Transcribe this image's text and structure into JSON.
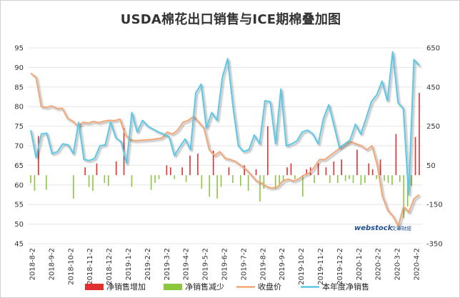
{
  "chart_data": {
    "type": "bar",
    "title": "USDA棉花出口销售与ICE期棉叠加图",
    "left_axis": {
      "min": 45,
      "max": 95,
      "ticks": [
        95,
        90,
        85,
        80,
        75,
        70,
        65,
        60,
        55,
        50,
        45
      ]
    },
    "right_axis": {
      "min": -350,
      "max": 650,
      "ticks": [
        650,
        450,
        250,
        50,
        -150,
        -350
      ]
    },
    "x_tick_labels": [
      "2018-8-2",
      "2018-9-2",
      "2018-10-2",
      "2018-11-2",
      "2018-12-2",
      "2019-1-2",
      "2019-2-2",
      "2019-3-2",
      "2019-4-2",
      "2019-5-2",
      "2019-6-2",
      "2019-7-2",
      "2019-8-2",
      "2019-9-2",
      "2019-10-2",
      "2019-11-2",
      "2019-12-2",
      "2020-1-2",
      "2020-2-2",
      "2020-3-2",
      "2020-4-2"
    ],
    "series": [
      {
        "name": "净销售增加",
        "color": "#e03030",
        "axis": "right"
      },
      {
        "name": "净销售减少",
        "color": "#8cc63f",
        "axis": "right"
      },
      {
        "name": "收盘价",
        "color": "#f0a878",
        "axis": "left",
        "values": [
          88.5,
          87.5,
          80.0,
          79.8,
          80.2,
          79.5,
          79.6,
          77.0,
          76.3,
          75.0,
          76.0,
          75.8,
          76.2,
          75.9,
          76.3,
          76.5,
          76.4,
          76.8,
          72.8,
          71.5,
          71.3,
          71.4,
          71.5,
          71.6,
          71.8,
          72.0,
          73.5,
          73.0,
          74.0,
          76.0,
          76.5,
          77.5,
          76.0,
          74.5,
          69.0,
          67.5,
          68.5,
          66.8,
          66.5,
          66.0,
          65.0,
          64.0,
          62.5,
          61.0,
          60.5,
          59.5,
          59.2,
          59.5,
          61.0,
          61.5,
          61.0,
          61.5,
          62.5,
          63.0,
          64.5,
          66.5,
          66.5,
          67.5,
          68.5,
          69.5,
          70.5,
          71.0,
          70.5,
          70.0,
          69.0,
          70.0,
          65.0,
          57.0,
          53.5,
          52.0,
          49.5,
          54.5,
          53.0,
          56.5,
          57.5
        ]
      },
      {
        "name": "本年度净销售",
        "color": "#5bc8e6",
        "axis": "right",
        "values": [
          230,
          90,
          210,
          215,
          110,
          120,
          160,
          155,
          110,
          270,
          80,
          75,
          85,
          150,
          155,
          270,
          190,
          170,
          60,
          320,
          220,
          280,
          250,
          235,
          220,
          210,
          195,
          100,
          145,
          185,
          130,
          420,
          465,
          240,
          320,
          280,
          500,
          595,
          350,
          150,
          120,
          130,
          205,
          160,
          380,
          375,
          160,
          440,
          150,
          160,
          175,
          220,
          230,
          210,
          160,
          290,
          360,
          250,
          140,
          160,
          180,
          260,
          210,
          290,
          375,
          410,
          480,
          380,
          630,
          370,
          340,
          -100,
          590,
          560
        ]
      }
    ],
    "bar_values": [
      -40,
      -80,
      200,
      0,
      -75,
      0,
      0,
      0,
      0,
      0,
      0,
      -120,
      0,
      0,
      40,
      -60,
      -80,
      60,
      0,
      -40,
      -55,
      0,
      70,
      0,
      240,
      0,
      -60,
      0,
      0,
      0,
      0,
      -75,
      -40,
      -20,
      0,
      50,
      40,
      -20,
      0,
      40,
      -35,
      100,
      0,
      110,
      -70,
      0,
      -110,
      125,
      -120,
      -60,
      0,
      40,
      -40,
      0,
      -55,
      50,
      -80,
      0,
      30,
      -135,
      -70,
      250,
      0,
      -70,
      -55,
      -30,
      40,
      60,
      -20,
      0,
      -110,
      30,
      40,
      -40,
      60,
      0,
      40,
      -40,
      70,
      -40,
      80,
      -30,
      -20,
      -40,
      130,
      -50,
      -40,
      60,
      30,
      -20,
      80,
      -30,
      -40,
      -50,
      210,
      -35,
      -220,
      -160,
      -55,
      195,
      420
    ],
    "watermark": {
      "logo": "webstock",
      "text": "文華財經"
    },
    "legend": [
      "净销售增加",
      "净销售减少",
      "收盘价",
      "本年度净销售"
    ]
  }
}
